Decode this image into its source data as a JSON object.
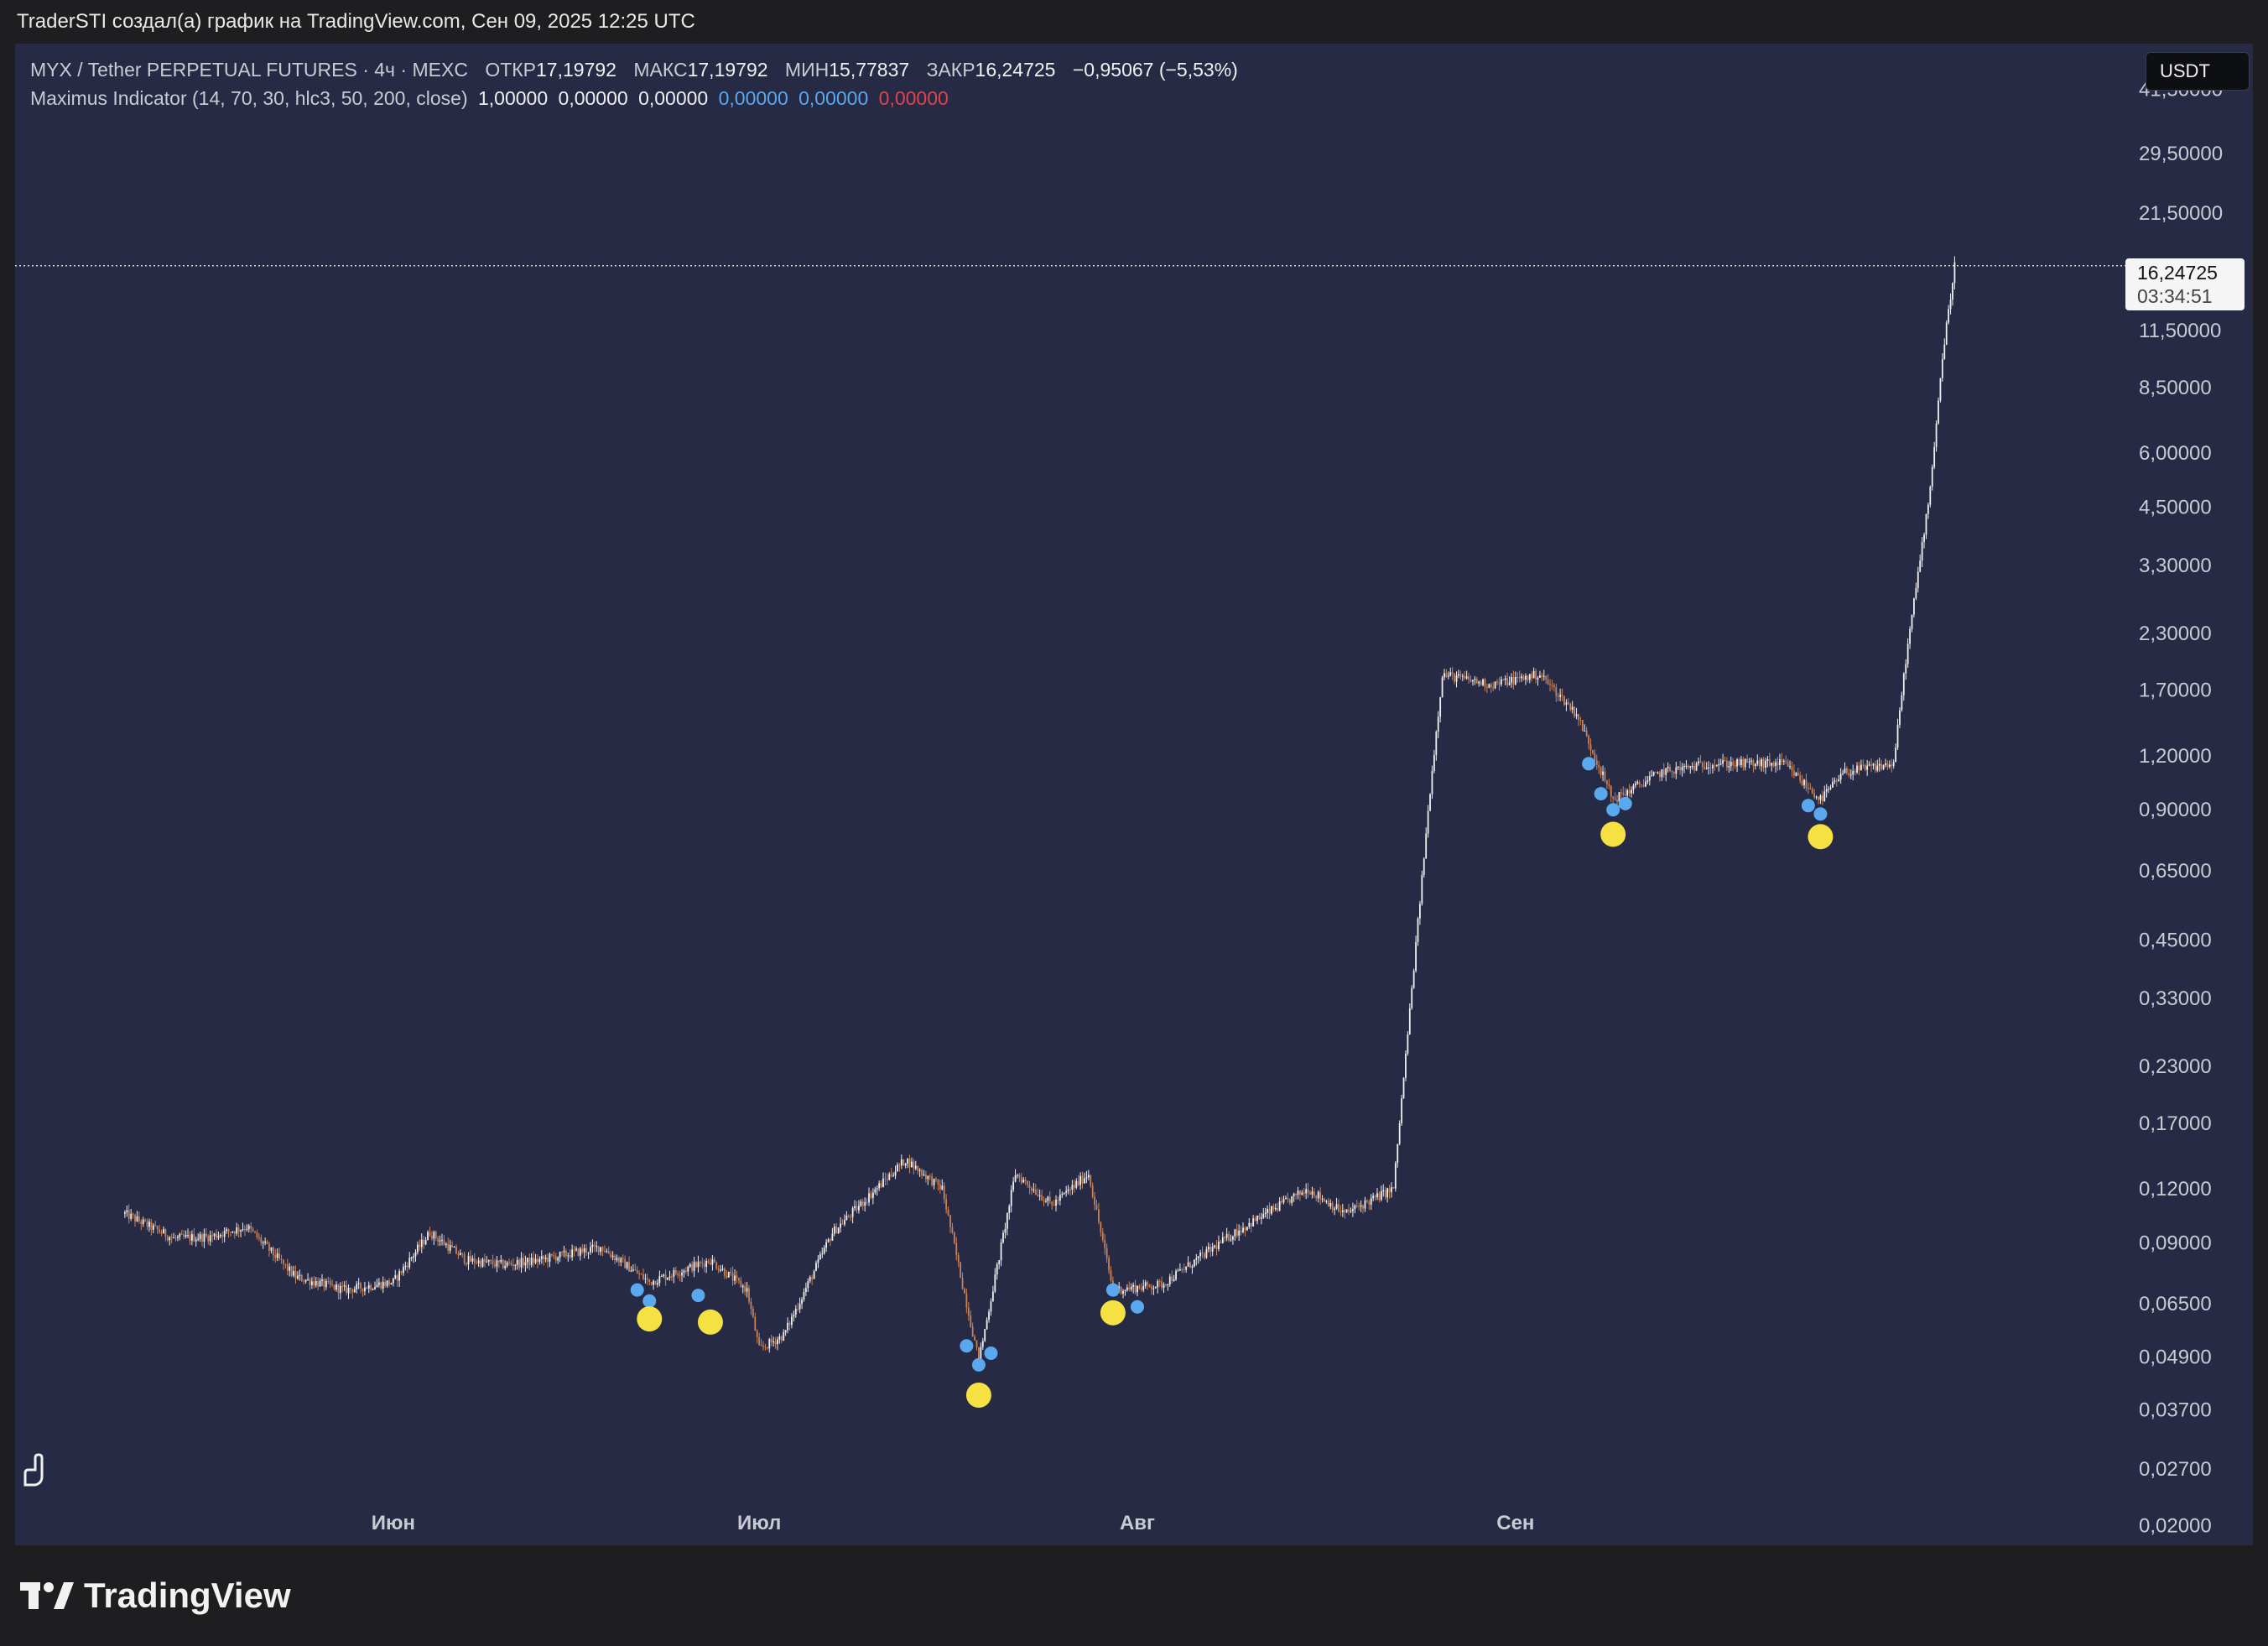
{
  "header": {
    "attribution": "TraderSTI создал(а) график на TradingView.com, Сен 09, 2025 12:25 UTC"
  },
  "legend": {
    "symbol": "MYX / Tether PERPETUAL FUTURES · 4ч · MEXC",
    "open_label": "ОТКР",
    "open_value": "17,19792",
    "high_label": "МАКС",
    "high_value": "17,19792",
    "low_label": "МИН",
    "low_value": "15,77837",
    "close_label": "ЗАКР",
    "close_value": "16,24725",
    "change": "−0,95067 (−5,53%)",
    "indicator_name": "Maximus Indicator (14, 70, 30, hlc3, 50, 200, close)",
    "indicator_values": [
      "1,00000",
      "0,00000",
      "0,00000",
      "0,00000",
      "0,00000",
      "0,00000"
    ]
  },
  "currency": "USDT",
  "last_price": {
    "price": "16,24725",
    "countdown": "03:34:51"
  },
  "footer": {
    "brand": "TradingView"
  },
  "icons": {
    "logo": "tradingview-logo-icon",
    "panel_toggle": "hand-toggle-icon"
  },
  "colors": {
    "background": "#262a45",
    "candle_up": "#f0f0f0",
    "candle_down": "#c98257",
    "buy_dot": "#5aa8ee",
    "signal_dot": "#f5e142"
  },
  "chart_data": {
    "type": "candlestick",
    "title": "MYX / Tether PERPETUAL FUTURES · 4ч · MEXC",
    "y_scale": "log",
    "ylim": [
      0.018,
      48
    ],
    "y_ticks": [
      "41,50000",
      "29,50000",
      "21,50000",
      "11,50000",
      "8,50000",
      "6,00000",
      "4,50000",
      "3,30000",
      "2,30000",
      "1,70000",
      "1,20000",
      "0,90000",
      "0,65000",
      "0,45000",
      "0,33000",
      "0,23000",
      "0,17000",
      "0,12000",
      "0,09000",
      "0,06500",
      "0,04900",
      "0,03700",
      "0,02700",
      "0,02000"
    ],
    "x_ticks": [
      "Июн",
      "Июл",
      "Авг",
      "Сен"
    ],
    "price_path": [
      [
        "2025-05-10",
        0.105
      ],
      [
        "2025-05-14",
        0.092
      ],
      [
        "2025-05-17",
        0.093
      ],
      [
        "2025-05-20",
        0.098
      ],
      [
        "2025-05-24",
        0.075
      ],
      [
        "2025-05-28",
        0.07
      ],
      [
        "2025-06-01",
        0.073
      ],
      [
        "2025-06-04",
        0.095
      ],
      [
        "2025-06-07",
        0.082
      ],
      [
        "2025-06-10",
        0.08
      ],
      [
        "2025-06-13",
        0.082
      ],
      [
        "2025-06-18",
        0.088
      ],
      [
        "2025-06-22",
        0.073
      ],
      [
        "2025-06-27",
        0.082
      ],
      [
        "2025-06-30",
        0.07
      ],
      [
        "2025-07-01",
        0.051
      ],
      [
        "2025-07-03",
        0.055
      ],
      [
        "2025-07-07",
        0.095
      ],
      [
        "2025-07-13",
        0.14
      ],
      [
        "2025-07-16",
        0.12
      ],
      [
        "2025-07-19",
        0.048
      ],
      [
        "2025-07-22",
        0.13
      ],
      [
        "2025-07-25",
        0.11
      ],
      [
        "2025-07-28",
        0.13
      ],
      [
        "2025-07-30",
        0.07
      ],
      [
        "2025-08-03",
        0.072
      ],
      [
        "2025-08-09",
        0.095
      ],
      [
        "2025-08-15",
        0.12
      ],
      [
        "2025-08-18",
        0.105
      ],
      [
        "2025-08-22",
        0.12
      ],
      [
        "2025-08-25",
        1.0
      ],
      [
        "2025-08-26",
        1.85
      ],
      [
        "2025-08-30",
        1.75
      ],
      [
        "2025-09-03",
        1.85
      ],
      [
        "2025-09-06",
        1.5
      ],
      [
        "2025-09-09",
        0.95
      ],
      [
        "2025-09-13",
        1.1
      ],
      [
        "2025-09-17",
        1.15
      ],
      [
        "2025-09-23",
        1.15
      ],
      [
        "2025-09-26",
        0.95
      ],
      [
        "2025-09-28",
        1.1
      ],
      [
        "2025-10-02",
        1.15
      ],
      [
        "2025-10-03",
        2.0
      ],
      [
        "2025-10-05",
        5.0
      ],
      [
        "2025-10-06",
        10.0
      ],
      [
        "2025-10-07",
        16.25
      ]
    ],
    "last_close": 16.24725,
    "signals": [
      {
        "date": "2025-06-22",
        "price": 0.06
      },
      {
        "date": "2025-06-27",
        "price": 0.059
      },
      {
        "date": "2025-07-19",
        "price": 0.04
      },
      {
        "date": "2025-07-30",
        "price": 0.062
      },
      {
        "date": "2025-09-09",
        "price": 0.79
      },
      {
        "date": "2025-09-26",
        "price": 0.78
      }
    ],
    "buy_markers": [
      {
        "date": "2025-06-21",
        "price": 0.07
      },
      {
        "date": "2025-06-22",
        "price": 0.066
      },
      {
        "date": "2025-06-26",
        "price": 0.068
      },
      {
        "date": "2025-07-18",
        "price": 0.052
      },
      {
        "date": "2025-07-19",
        "price": 0.047
      },
      {
        "date": "2025-07-20",
        "price": 0.05
      },
      {
        "date": "2025-07-30",
        "price": 0.07
      },
      {
        "date": "2025-08-01",
        "price": 0.064
      },
      {
        "date": "2025-09-07",
        "price": 1.15
      },
      {
        "date": "2025-09-08",
        "price": 0.98
      },
      {
        "date": "2025-09-09",
        "price": 0.9
      },
      {
        "date": "2025-09-10",
        "price": 0.93
      },
      {
        "date": "2025-09-25",
        "price": 0.92
      },
      {
        "date": "2025-09-26",
        "price": 0.88
      }
    ]
  }
}
